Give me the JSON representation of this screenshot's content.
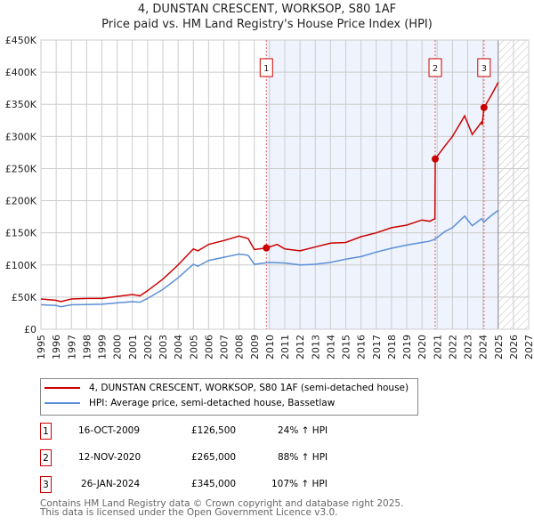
{
  "chart_data": {
    "type": "line",
    "title": "4, DUNSTAN CRESCENT, WORKSOP, S80 1AF",
    "subtitle": "Price paid vs. HM Land Registry's House Price Index (HPI)",
    "xlim": [
      1995,
      2027
    ],
    "ylim": [
      0,
      450000
    ],
    "x_ticks": [
      "1995",
      "1996",
      "1997",
      "1998",
      "1999",
      "2000",
      "2001",
      "2002",
      "2003",
      "2004",
      "2005",
      "2006",
      "2007",
      "2008",
      "2009",
      "2010",
      "2011",
      "2012",
      "2013",
      "2014",
      "2015",
      "2016",
      "2017",
      "2018",
      "2019",
      "2020",
      "2021",
      "2022",
      "2023",
      "2024",
      "2025",
      "2026",
      "2027"
    ],
    "y_ticks": [
      {
        "v": 0,
        "label": "£0"
      },
      {
        "v": 50000,
        "label": "£50K"
      },
      {
        "v": 100000,
        "label": "£100K"
      },
      {
        "v": 150000,
        "label": "£150K"
      },
      {
        "v": 200000,
        "label": "£200K"
      },
      {
        "v": 250000,
        "label": "£250K"
      },
      {
        "v": 300000,
        "label": "£300K"
      },
      {
        "v": 350000,
        "label": "£350K"
      },
      {
        "v": 400000,
        "label": "£400K"
      },
      {
        "v": 450000,
        "label": "£450K"
      }
    ],
    "grid": true,
    "shaded_range": [
      2009.79,
      2025.0
    ],
    "hatched_range": [
      2025.0,
      2027
    ],
    "series": [
      {
        "name": "4, DUNSTAN CRESCENT, WORKSOP, S80 1AF (semi-detached house)",
        "color": "#cc0000",
        "x": [
          1995,
          1996,
          1996.3,
          1997,
          1998,
          1999,
          2000,
          2001,
          2001.5,
          2002,
          2003,
          2004,
          2005,
          2005.3,
          2006,
          2007,
          2008,
          2008.6,
          2009,
          2009.79,
          2010.5,
          2011,
          2012,
          2013,
          2014,
          2015,
          2016,
          2017,
          2018,
          2019,
          2020,
          2020.5,
          2020.85,
          2020.87,
          2021.5,
          2022,
          2022.8,
          2023.3,
          2023.9,
          2023.95,
          2024.07,
          2024.5,
          2025
        ],
        "y": [
          47000,
          45000,
          43000,
          47000,
          48000,
          48000,
          51000,
          54000,
          52000,
          60000,
          78000,
          100000,
          125000,
          122000,
          132000,
          138000,
          145000,
          141000,
          124000,
          126500,
          132000,
          125000,
          122000,
          128000,
          134000,
          135000,
          144000,
          150000,
          158000,
          162000,
          170000,
          168000,
          172000,
          265000,
          285000,
          300000,
          332000,
          303000,
          322000,
          318000,
          345000,
          362000,
          384000
        ]
      },
      {
        "name": "HPI: Average price, semi-detached house, Bassetlaw",
        "color": "#5b8fd6",
        "x": [
          1995,
          1996,
          1996.3,
          1997,
          1998,
          1999,
          2000,
          2001,
          2001.5,
          2002,
          2003,
          2004,
          2005,
          2005.3,
          2006,
          2007,
          2008,
          2008.6,
          2009,
          2010,
          2011,
          2012,
          2013,
          2014,
          2015,
          2016,
          2017,
          2018,
          2019,
          2020,
          2020.5,
          2020.85,
          2021.5,
          2022,
          2022.8,
          2023.3,
          2023.9,
          2024.07,
          2024.5,
          2025
        ],
        "y": [
          38000,
          37000,
          35000,
          38000,
          38500,
          39000,
          41000,
          43000,
          42000,
          48000,
          62000,
          80000,
          101000,
          98000,
          107000,
          112000,
          117000,
          115000,
          101000,
          104000,
          103000,
          100000,
          101000,
          104000,
          109000,
          113000,
          120000,
          126000,
          131000,
          135000,
          137000,
          140000,
          152000,
          158000,
          176000,
          161000,
          172000,
          167000,
          176000,
          185000
        ]
      }
    ],
    "sales": [
      {
        "n": "1",
        "x": 2009.79,
        "y": 126500,
        "date": "16-OCT-2009",
        "price": "£126,500",
        "hpi": "24% ↑ HPI"
      },
      {
        "n": "2",
        "x": 2020.87,
        "y": 265000,
        "date": "12-NOV-2020",
        "price": "£265,000",
        "hpi": "88% ↑ HPI"
      },
      {
        "n": "3",
        "x": 2024.07,
        "y": 345000,
        "date": "26-JAN-2024",
        "price": "£345,000",
        "hpi": "107% ↑ HPI"
      }
    ],
    "legend_placement": "bottom"
  },
  "footer": {
    "line1": "Contains HM Land Registry data © Crown copyright and database right 2025.",
    "line2": "This data is licensed under the Open Government Licence v3.0."
  }
}
